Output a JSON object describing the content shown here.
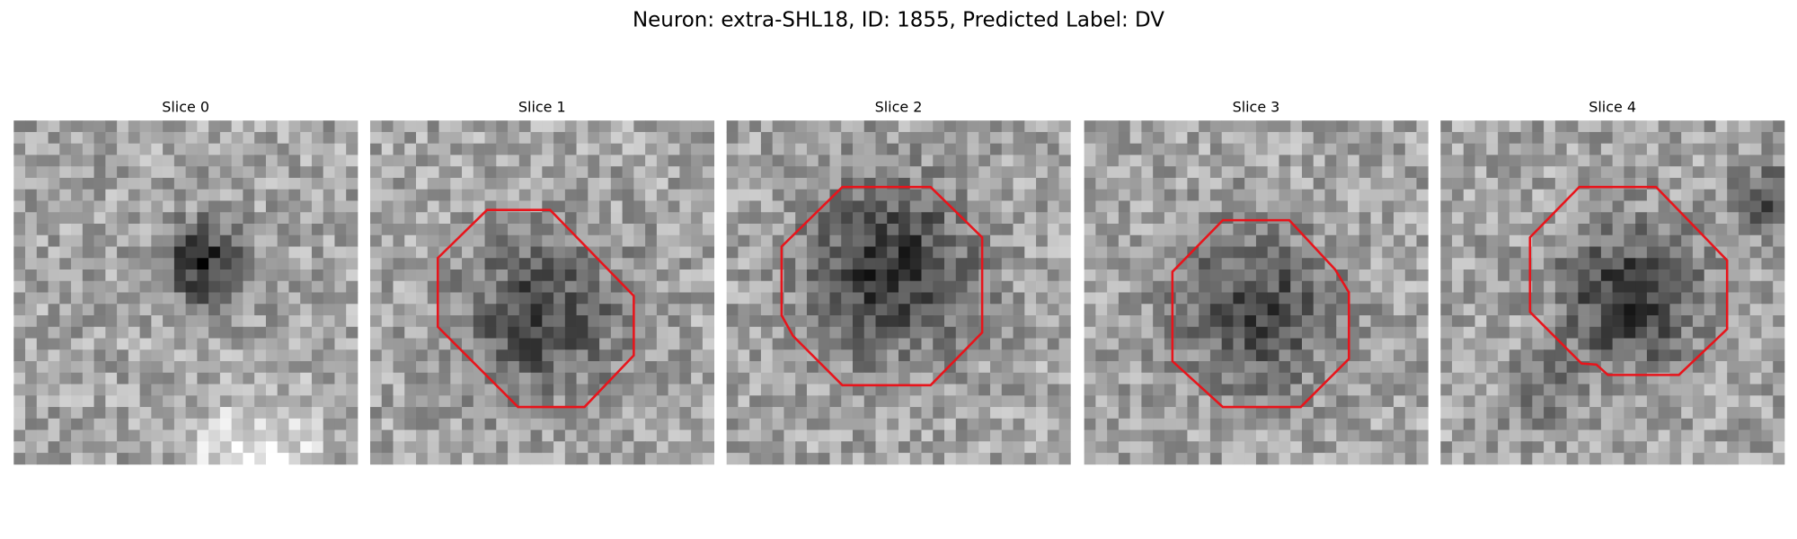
{
  "title": "Neuron: extra-SHL18, ID: 1855, Predicted Label: DV",
  "panels": [
    {
      "title": "Slice 0"
    },
    {
      "title": "Slice 1"
    },
    {
      "title": "Slice 2"
    },
    {
      "title": "Slice 3"
    },
    {
      "title": "Slice 4"
    }
  ]
}
